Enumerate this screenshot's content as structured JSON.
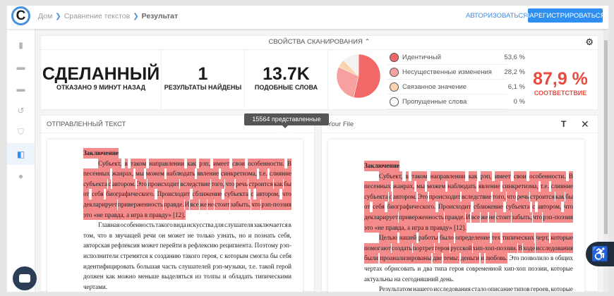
{
  "header": {
    "logo": "C",
    "breadcrumbs": [
      "Дом",
      "Сравнение текстов",
      "Результат"
    ],
    "login_label": "АВТОРИЗОВАТЬСЯ",
    "register_label": "ЗАРЕГИСТРИРОВАТЬСЯ"
  },
  "sidebar": {
    "items": [
      {
        "icon": "file-add-icon",
        "active": false
      },
      {
        "icon": "folder-star-icon",
        "active": false
      },
      {
        "icon": "folder-user-icon",
        "active": false
      },
      {
        "icon": "history-icon",
        "active": false
      },
      {
        "icon": "shield-icon",
        "active": false
      },
      {
        "icon": "compare-icon",
        "active": true
      },
      {
        "icon": "compass-icon",
        "active": false
      }
    ]
  },
  "scan": {
    "title": "СВОЙСТВА СКАНИРОВАНИЯ",
    "status": {
      "value": "СДЕЛАННЫЙ",
      "label": "ОТКАЗАНО 9 МИНУТ НАЗАД"
    },
    "results": {
      "value": "1",
      "label": "РЕЗУЛЬТАТЫ НАЙДЕНЫ"
    },
    "similar": {
      "value": "13.7K",
      "label": "ПОДОБНЫЕ СЛОВА"
    },
    "legend": [
      {
        "label": "Идентичный",
        "pct": "53,6 %",
        "value": 53.6,
        "color": "#f26868"
      },
      {
        "label": "Несущественные изменения",
        "pct": "28,2 %",
        "value": 28.2,
        "color": "#f7a0a0"
      },
      {
        "label": "Связанное значение",
        "pct": "6,1 %",
        "value": 6.1,
        "color": "#fbd3ad"
      },
      {
        "label": "Пропущенные слова",
        "pct": "0 %",
        "value": 0,
        "color": "#ffffff"
      }
    ],
    "remainder_color": "#f2f2f2",
    "match": {
      "value": "87,9 %",
      "label": "СООТВЕТСТВИЕ"
    }
  },
  "tooltip": "15564 представленные слова",
  "left_panel": {
    "title": "ОТПРАВЛЕННЫЙ ТЕКСТ",
    "lines": [
      {
        "s": [
          [
            "Заключение",
            1
          ]
        ],
        "title": true
      },
      {
        "s": [
          [
            "Субъект, в таком направлении как рэп, имеет свои особенности. В",
            1
          ]
        ],
        "indent": true
      },
      {
        "s": [
          [
            "песенных жанрах, мы можем наблюдать явление синкретизма, т.е. слияние",
            1
          ]
        ]
      },
      {
        "s": [
          [
            "субъекта с автором. Это происходит вследствие того, что речь строится как бы",
            1
          ]
        ]
      },
      {
        "s": [
          [
            "от себя биографического. Происходит сближение субъекта с автором, что",
            1
          ]
        ]
      },
      {
        "s": [
          [
            "декларирует приверженность правде. И все же не стоит забыть, что рэп-поэзия",
            1
          ]
        ]
      },
      {
        "s": [
          [
            "это «не правда, а игра в правду» [12].",
            1
          ]
        ],
        "last": true
      },
      {
        "s": [
          [
            "Главная особенность такого вида искусства для слушателя заключается в",
            0
          ]
        ],
        "indent": true
      },
      {
        "s": [
          [
            "том, что в звучащей речи он может не только узнать, но и познать себя,",
            0
          ]
        ]
      },
      {
        "s": [
          [
            "авторская рефлексия может перейти в рефлексию реципиента. Поэтому рэп-",
            0
          ]
        ]
      },
      {
        "s": [
          [
            "исполнители стремятся к созданию такого героя, с которым смогла бы себя",
            0
          ]
        ]
      },
      {
        "s": [
          [
            "идентифицировать большая часть слушателей рэп-музыки, т.е. такой герой",
            0
          ]
        ]
      },
      {
        "s": [
          [
            "должен как можно меньше выделяться из толпы и обладать типическими",
            0
          ]
        ]
      },
      {
        "s": [
          [
            "чертами.",
            0
          ]
        ],
        "last": true
      }
    ]
  },
  "right_panel": {
    "title": "Your File",
    "lines": [
      {
        "s": [
          [
            "Заключение",
            1
          ]
        ],
        "title": true
      },
      {
        "s": [
          [
            "Субъект, в таком направлении как рэп, имеет свои особенности. В",
            1
          ]
        ],
        "indent": true
      },
      {
        "s": [
          [
            "песенных жанрах, мы можем наблюдать явление синкретизма, т.е. слияние",
            1
          ]
        ]
      },
      {
        "s": [
          [
            "субъекта с автором. Это происходит вследствие того, что речь строится как бы",
            1
          ]
        ]
      },
      {
        "s": [
          [
            "от себя биографического. Происходит сближение субъекта с автором, что",
            1
          ]
        ]
      },
      {
        "s": [
          [
            "декларирует приверженность правде. И все же не стоит забыть, что рэп-поэзия",
            1
          ]
        ]
      },
      {
        "s": [
          [
            "это «не правда, а игра в правду» [12].",
            1
          ]
        ],
        "last": true
      },
      {
        "s": [
          [
            "Целью нашей работы было определение тех типических черт, которые",
            1
          ]
        ],
        "indent": true
      },
      {
        "s": [
          [
            "помогают создать портрет героя русской хип-хоп-поэзии. В ходе исследования",
            1
          ]
        ]
      },
      {
        "s": [
          [
            "были проанализированы две темы: деньги и любовь.",
            1
          ],
          [
            " Это позволило в общих",
            0
          ]
        ]
      },
      {
        "s": [
          [
            "чертах обрисовать и два типа героя современной хип-хоп поэзии, которые",
            0
          ]
        ]
      },
      {
        "s": [
          [
            "актуальны на сегодняшний день.",
            0
          ]
        ],
        "last": true
      },
      {
        "s": [
          [
            "Результатом нашего исследования стало описание типов героев, которые",
            0
          ]
        ],
        "indent": true
      }
    ]
  }
}
